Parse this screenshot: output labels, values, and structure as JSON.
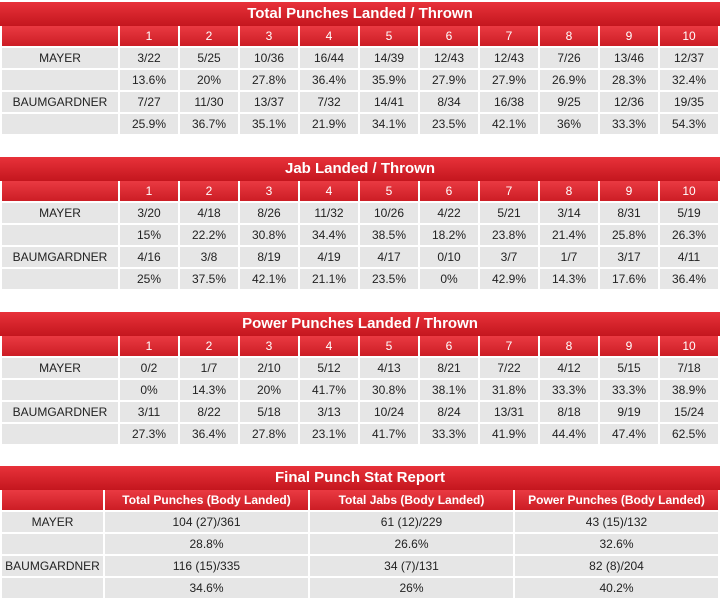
{
  "sections": [
    {
      "title": "Total Punches Landed / Thrown",
      "rounds": [
        "1",
        "2",
        "3",
        "4",
        "5",
        "6",
        "7",
        "8",
        "9",
        "10"
      ],
      "rows": [
        {
          "name": "MAYER",
          "values": [
            "3/22",
            "5/25",
            "10/36",
            "16/44",
            "14/39",
            "12/43",
            "12/43",
            "7/26",
            "13/46",
            "12/37"
          ],
          "pcts": [
            "13.6%",
            "20%",
            "27.8%",
            "36.4%",
            "35.9%",
            "27.9%",
            "27.9%",
            "26.9%",
            "28.3%",
            "32.4%"
          ]
        },
        {
          "name": "BAUMGARDNER",
          "values": [
            "7/27",
            "11/30",
            "13/37",
            "7/32",
            "14/41",
            "8/34",
            "16/38",
            "9/25",
            "12/36",
            "19/35"
          ],
          "pcts": [
            "25.9%",
            "36.7%",
            "35.1%",
            "21.9%",
            "34.1%",
            "23.5%",
            "42.1%",
            "36%",
            "33.3%",
            "54.3%"
          ]
        }
      ]
    },
    {
      "title": "Jab Landed / Thrown",
      "rounds": [
        "1",
        "2",
        "3",
        "4",
        "5",
        "6",
        "7",
        "8",
        "9",
        "10"
      ],
      "rows": [
        {
          "name": "MAYER",
          "values": [
            "3/20",
            "4/18",
            "8/26",
            "11/32",
            "10/26",
            "4/22",
            "5/21",
            "3/14",
            "8/31",
            "5/19"
          ],
          "pcts": [
            "15%",
            "22.2%",
            "30.8%",
            "34.4%",
            "38.5%",
            "18.2%",
            "23.8%",
            "21.4%",
            "25.8%",
            "26.3%"
          ]
        },
        {
          "name": "BAUMGARDNER",
          "values": [
            "4/16",
            "3/8",
            "8/19",
            "4/19",
            "4/17",
            "0/10",
            "3/7",
            "1/7",
            "3/17",
            "4/11"
          ],
          "pcts": [
            "25%",
            "37.5%",
            "42.1%",
            "21.1%",
            "23.5%",
            "0%",
            "42.9%",
            "14.3%",
            "17.6%",
            "36.4%"
          ]
        }
      ]
    },
    {
      "title": "Power Punches Landed / Thrown",
      "rounds": [
        "1",
        "2",
        "3",
        "4",
        "5",
        "6",
        "7",
        "8",
        "9",
        "10"
      ],
      "rows": [
        {
          "name": "MAYER",
          "values": [
            "0/2",
            "1/7",
            "2/10",
            "5/12",
            "4/13",
            "8/21",
            "7/22",
            "4/12",
            "5/15",
            "7/18"
          ],
          "pcts": [
            "0%",
            "14.3%",
            "20%",
            "41.7%",
            "30.8%",
            "38.1%",
            "31.8%",
            "33.3%",
            "33.3%",
            "38.9%"
          ]
        },
        {
          "name": "BAUMGARDNER",
          "values": [
            "3/11",
            "8/22",
            "5/18",
            "3/13",
            "10/24",
            "8/24",
            "13/31",
            "8/18",
            "9/19",
            "15/24"
          ],
          "pcts": [
            "27.3%",
            "36.4%",
            "27.8%",
            "23.1%",
            "41.7%",
            "33.3%",
            "41.9%",
            "44.4%",
            "47.4%",
            "62.5%"
          ]
        }
      ]
    }
  ],
  "final": {
    "title": "Final Punch Stat Report",
    "headers": [
      "Total Punches (Body Landed)",
      "Total Jabs (Body Landed)",
      "Power Punches (Body Landed)"
    ],
    "rows": [
      {
        "name": "MAYER",
        "values": [
          "104 (27)/361",
          "61 (12)/229",
          "43 (15)/132"
        ],
        "pcts": [
          "28.8%",
          "26.6%",
          "32.6%"
        ]
      },
      {
        "name": "BAUMGARDNER",
        "values": [
          "116 (15)/335",
          "34 (7)/131",
          "82 (8)/204"
        ],
        "pcts": [
          "34.6%",
          "26%",
          "40.2%"
        ]
      }
    ]
  }
}
